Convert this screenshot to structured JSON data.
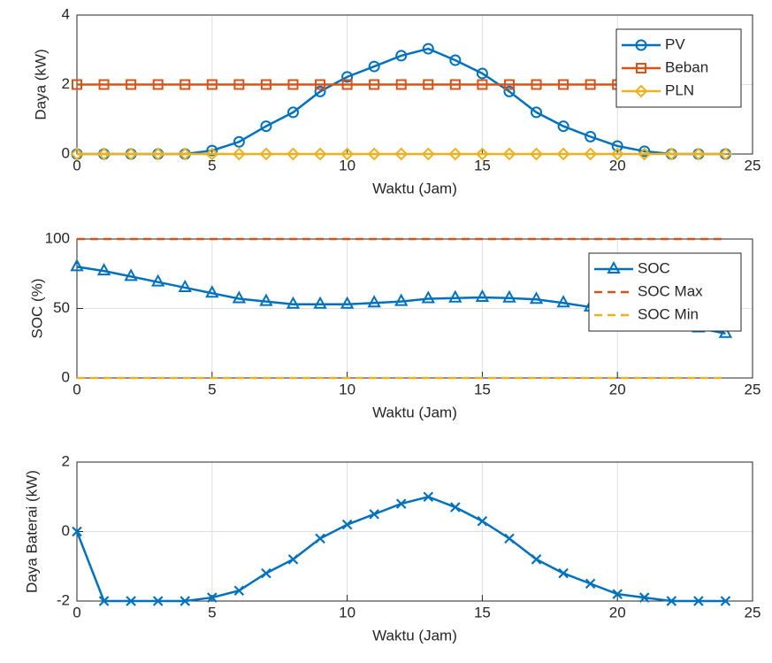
{
  "chart_data": [
    {
      "type": "line",
      "xlabel": "Waktu (Jam)",
      "ylabel": "Daya (kW)",
      "x": [
        0,
        1,
        2,
        3,
        4,
        5,
        6,
        7,
        8,
        9,
        10,
        11,
        12,
        13,
        14,
        15,
        16,
        17,
        18,
        19,
        20,
        21,
        22,
        23,
        24
      ],
      "series": [
        {
          "name": "PV",
          "color": "#0072BD",
          "marker": "circle",
          "dash": false,
          "values": [
            0,
            0,
            0,
            0,
            0,
            0.1,
            0.35,
            0.8,
            1.2,
            1.8,
            2.22,
            2.52,
            2.83,
            3.03,
            2.7,
            2.32,
            1.8,
            1.2,
            0.8,
            0.5,
            0.23,
            0.08,
            0,
            0,
            0
          ]
        },
        {
          "name": "Beban",
          "color": "#D95319",
          "marker": "square",
          "dash": false,
          "values": [
            2,
            2,
            2,
            2,
            2,
            2,
            2,
            2,
            2,
            2,
            2,
            2,
            2,
            2,
            2,
            2,
            2,
            2,
            2,
            2,
            2,
            2,
            2,
            2,
            2
          ]
        },
        {
          "name": "PLN",
          "color": "#EDB120",
          "marker": "diamond",
          "dash": false,
          "values": [
            0,
            0,
            0,
            0,
            0,
            0,
            0,
            0,
            0,
            0,
            0,
            0,
            0,
            0,
            0,
            0,
            0,
            0,
            0,
            0,
            0,
            0,
            0,
            0,
            0
          ]
        }
      ],
      "xlim": [
        0,
        25
      ],
      "xticks": [
        0,
        5,
        10,
        15,
        20,
        25
      ],
      "ylim": [
        0,
        4
      ],
      "yticks": [
        0,
        2,
        4
      ],
      "grid": true,
      "legend": "northeast"
    },
    {
      "type": "line",
      "xlabel": "Waktu (Jam)",
      "ylabel": "SOC (%)",
      "x": [
        0,
        1,
        2,
        3,
        4,
        5,
        6,
        7,
        8,
        9,
        10,
        11,
        12,
        13,
        14,
        15,
        16,
        17,
        18,
        19,
        20,
        21,
        22,
        23,
        24
      ],
      "series": [
        {
          "name": "SOC",
          "color": "#0072BD",
          "marker": "triangle",
          "dash": false,
          "values": [
            80,
            77,
            73,
            69,
            65,
            61,
            57,
            55,
            53,
            53,
            53,
            54,
            55,
            57,
            57.5,
            58,
            57.5,
            56.5,
            54,
            51,
            48,
            44,
            40,
            36,
            32
          ]
        },
        {
          "name": "SOC Max",
          "color": "#D95319",
          "marker": "none",
          "dash": true,
          "values": [
            100,
            100,
            100,
            100,
            100,
            100,
            100,
            100,
            100,
            100,
            100,
            100,
            100,
            100,
            100,
            100,
            100,
            100,
            100,
            100,
            100,
            100,
            100,
            100,
            100
          ]
        },
        {
          "name": "SOC Min",
          "color": "#EDB120",
          "marker": "none",
          "dash": true,
          "values": [
            0,
            0,
            0,
            0,
            0,
            0,
            0,
            0,
            0,
            0,
            0,
            0,
            0,
            0,
            0,
            0,
            0,
            0,
            0,
            0,
            0,
            0,
            0,
            0,
            0
          ]
        }
      ],
      "xlim": [
        0,
        25
      ],
      "xticks": [
        0,
        5,
        10,
        15,
        20,
        25
      ],
      "ylim": [
        0,
        100
      ],
      "yticks": [
        0,
        50,
        100
      ],
      "grid": true,
      "legend": "northeast"
    },
    {
      "type": "line",
      "xlabel": "Waktu (Jam)",
      "ylabel": "Daya Baterai (kW)",
      "x": [
        0,
        1,
        2,
        3,
        4,
        5,
        6,
        7,
        8,
        9,
        10,
        11,
        12,
        13,
        14,
        15,
        16,
        17,
        18,
        19,
        20,
        21,
        22,
        23,
        24
      ],
      "series": [
        {
          "color": "#0072BD",
          "marker": "x",
          "dash": false,
          "values": [
            0,
            -2,
            -2,
            -2,
            -2,
            -1.9,
            -1.7,
            -1.2,
            -0.8,
            -0.2,
            0.2,
            0.5,
            0.8,
            1.0,
            0.7,
            0.3,
            -0.2,
            -0.8,
            -1.2,
            -1.5,
            -1.8,
            -1.9,
            -2,
            -2,
            -2
          ]
        }
      ],
      "xlim": [
        0,
        25
      ],
      "xticks": [
        0,
        5,
        10,
        15,
        20,
        25
      ],
      "ylim": [
        -2,
        2
      ],
      "yticks": [
        -2,
        0,
        2
      ],
      "grid": true
    }
  ]
}
